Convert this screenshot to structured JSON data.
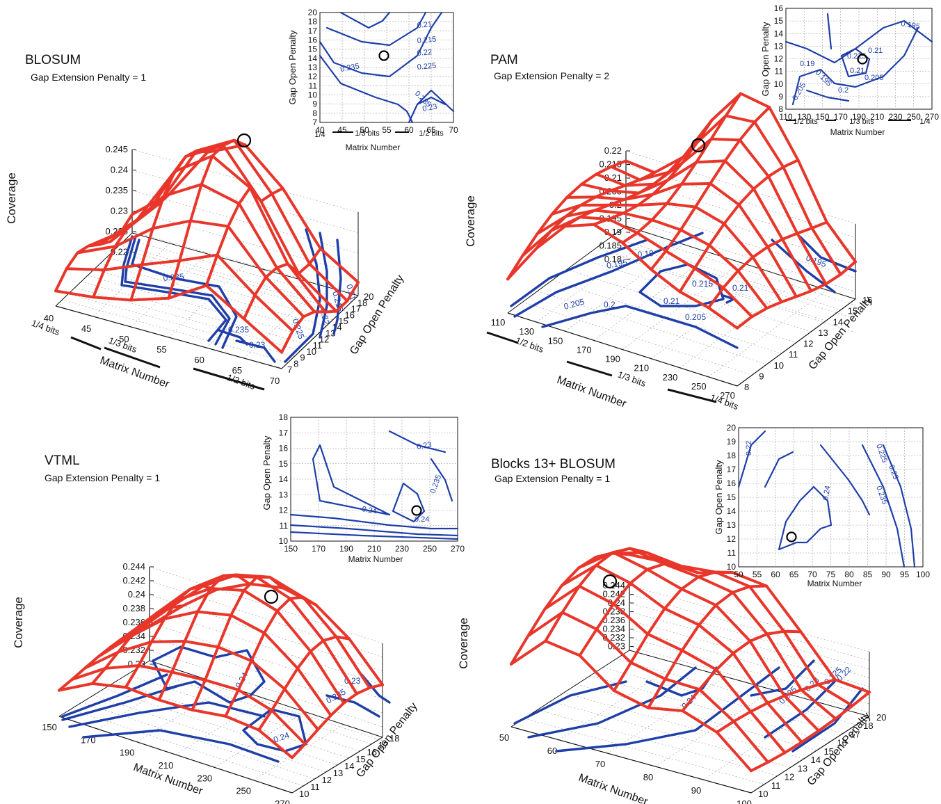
{
  "colors": {
    "surface": "#e8362b",
    "contour": "#1f3fa8",
    "axis": "#111111",
    "grid": "#9a9a9a",
    "marker": "#000000"
  },
  "common": {
    "coverage_label": "Coverage",
    "matrix_label": "Matrix Number",
    "gap_open_label": "Gap Open Penalty"
  },
  "chart_data": [
    {
      "type": "surface",
      "title": "BLOSUM",
      "subtitle": "Gap Extension Penalty = 1",
      "xlabel": "Matrix Number",
      "ylabel": "Gap Open Penalty",
      "zlabel": "Coverage",
      "x_ticks": [
        "40",
        "45",
        "50",
        "55",
        "60",
        "65",
        "70"
      ],
      "y_ticks": [
        "7",
        "8",
        "9",
        "10",
        "11",
        "12",
        "13",
        "14",
        "15",
        "16",
        "17",
        "18",
        "20"
      ],
      "z_ticks": [
        "0.245",
        "0.24",
        "0.235",
        "0.23",
        "0.225",
        "0.22"
      ],
      "bit_labels": [
        "1/4 bits",
        "1/3 bits",
        "1/2 bits"
      ],
      "contour_labels": [
        "0.235",
        "0.235",
        "0.23",
        "0.225",
        "0.22",
        "0.215",
        "0.21"
      ],
      "optimum": {
        "matrix": 55,
        "gap_open": 14,
        "coverage": 0.245
      },
      "inset": {
        "x_ticks": [
          "40",
          "45",
          "50",
          "55",
          "60",
          "65",
          "70"
        ],
        "y_ticks": [
          "7",
          "8",
          "9",
          "10",
          "11",
          "12",
          "13",
          "14",
          "15",
          "16",
          "17",
          "18",
          "20"
        ],
        "bit_labels": [
          "1/4",
          "1/3 bits",
          "1/2 bits"
        ],
        "contour_labels": [
          "0.235",
          "0.21",
          "0.215",
          "0.22",
          "0.225",
          "0.235",
          "0.23"
        ]
      }
    },
    {
      "type": "surface",
      "title": "PAM",
      "subtitle": "Gap Extension Penalty = 2",
      "xlabel": "Matrix Number",
      "ylabel": "Gap Open Penalty",
      "zlabel": "Coverage",
      "x_ticks": [
        "110",
        "130",
        "150",
        "170",
        "190",
        "210",
        "230",
        "250",
        "270"
      ],
      "y_ticks": [
        "8",
        "9",
        "10",
        "11",
        "12",
        "13",
        "14",
        "15",
        "16"
      ],
      "z_ticks": [
        "0.22",
        "0.215",
        "0.21",
        "0.205",
        "0.2",
        "0.195",
        "0.19",
        "0.185",
        "0.18"
      ],
      "bit_labels": [
        "1/2 bits",
        "1/3 bits",
        "1/4 bits"
      ],
      "contour_labels": [
        "0.19",
        "0.195",
        "0.205",
        "0.2",
        "0.215",
        "0.21",
        "0.21",
        "0.205",
        "0.195"
      ],
      "optimum": {
        "matrix": 190,
        "gap_open": 12,
        "coverage": 0.22
      },
      "inset": {
        "x_ticks": [
          "110",
          "130",
          "150",
          "170",
          "190",
          "210",
          "230",
          "250",
          "270"
        ],
        "y_ticks": [
          "8",
          "9",
          "10",
          "11",
          "12",
          "13",
          "14",
          "15",
          "16"
        ],
        "bit_labels": [
          "1/2 bits",
          "1/3 bits",
          "1/4"
        ],
        "contour_labels": [
          "0.195",
          "0.19",
          "0.195",
          "0.215",
          "0.21",
          "0.21",
          "0.205",
          "0.205",
          "0.2"
        ]
      }
    },
    {
      "type": "surface",
      "title": "VTML",
      "subtitle": "Gap Extension Penalty = 1",
      "xlabel": "Matrix Number",
      "ylabel": "Gap Open Penalty",
      "zlabel": "Coverage",
      "x_ticks": [
        "150",
        "170",
        "190",
        "210",
        "230",
        "250",
        "270"
      ],
      "y_ticks": [
        "10",
        "11",
        "12",
        "13",
        "14",
        "15",
        "16",
        "17",
        "18"
      ],
      "z_ticks": [
        "0.244",
        "0.242",
        "0.24",
        "0.238",
        "0.236",
        "0.234",
        "0.232",
        "0.23"
      ],
      "contour_labels": [
        "0.24",
        "0.24",
        "0.235",
        "0.23"
      ],
      "optimum": {
        "matrix": 237,
        "gap_open": 12,
        "coverage": 0.24
      },
      "inset": {
        "x_ticks": [
          "150",
          "170",
          "190",
          "210",
          "230",
          "250",
          "270"
        ],
        "y_ticks": [
          "10",
          "11",
          "12",
          "13",
          "14",
          "15",
          "16",
          "17",
          "18"
        ],
        "contour_labels": [
          "0.23",
          "0.235",
          "0.24",
          "0.24"
        ]
      }
    },
    {
      "type": "surface",
      "title": "Blocks 13+ BLOSUM",
      "subtitle": "Gap Extension Penalty = 1",
      "xlabel": "Matrix Number",
      "ylabel": "Gap Open Penalty",
      "zlabel": "Coverage",
      "x_ticks": [
        "50",
        "60",
        "70",
        "80",
        "90",
        "100"
      ],
      "y_ticks": [
        "10",
        "11",
        "12",
        "13",
        "14",
        "15",
        "16",
        "17",
        "18",
        "20"
      ],
      "z_ticks": [
        "0.244",
        "0.242",
        "0.24",
        "0.238",
        "0.236",
        "0.234",
        "0.232",
        "0.23"
      ],
      "contour_labels": [
        "0.24",
        "0.235",
        "0.23",
        "0.225",
        "0.22"
      ],
      "optimum": {
        "matrix": 64,
        "gap_open": 12,
        "coverage": 0.244
      },
      "inset": {
        "x_ticks": [
          "50",
          "55",
          "60",
          "65",
          "70",
          "75",
          "80",
          "85",
          "90",
          "95",
          "100"
        ],
        "y_ticks": [
          "10",
          "11",
          "12",
          "13",
          "14",
          "15",
          "16",
          "17",
          "18",
          "19",
          "20"
        ],
        "contour_labels": [
          "0.22",
          "0.24",
          "0.225",
          "0.23",
          "0.235"
        ]
      }
    }
  ]
}
